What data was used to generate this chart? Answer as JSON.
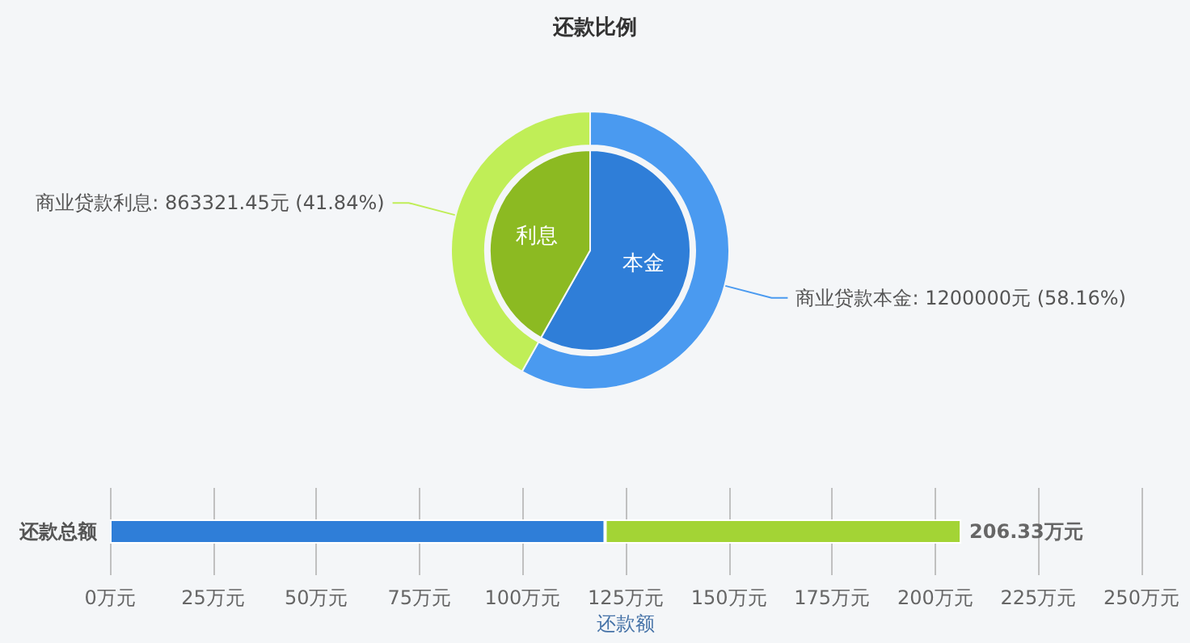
{
  "chart_data": [
    {
      "type": "donut",
      "title": "还款比例",
      "categories": [
        "本金",
        "利息"
      ],
      "legend": false,
      "series": [
        {
          "colors": [
            "#4a9af0",
            "#c0ee57"
          ],
          "values": [
            1200000,
            863321.45
          ],
          "value_labels": [
            "商业贷款本金: 1200000元 (58.16%)",
            "商业贷款利息: 863321.45元 (41.84%)"
          ]
        },
        {
          "colors": [
            "#2f7ed8",
            "#8cba22"
          ],
          "values": [
            58.16,
            41.84
          ]
        }
      ]
    },
    {
      "type": "bar",
      "orientation": "horizontal",
      "stacked": true,
      "categories": [
        "还款总额"
      ],
      "xlabel": "还款额",
      "xlim": [
        0,
        250
      ],
      "xticks": [
        {
          "value": 0,
          "label": "0万元"
        },
        {
          "value": 25,
          "label": "25万元"
        },
        {
          "value": 50,
          "label": "50万元"
        },
        {
          "value": 75,
          "label": "75万元"
        },
        {
          "value": 100,
          "label": "100万元"
        },
        {
          "value": 125,
          "label": "125万元"
        },
        {
          "value": 150,
          "label": "150万元"
        },
        {
          "value": 175,
          "label": "175万元"
        },
        {
          "value": 200,
          "label": "200万元"
        },
        {
          "value": 225,
          "label": "225万元"
        },
        {
          "value": 250,
          "label": "250万元"
        }
      ],
      "grid": "x",
      "legend": false,
      "totals": [
        "206.33万元"
      ],
      "series": [
        {
          "color": "#2f7ed8",
          "values": [
            120
          ]
        },
        {
          "color": "#a3d435",
          "values": [
            86.33
          ]
        }
      ]
    }
  ]
}
